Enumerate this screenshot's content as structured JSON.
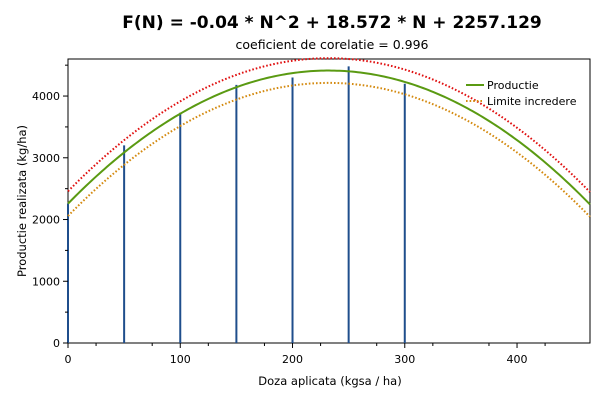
{
  "chart_data": {
    "type": "line",
    "title": "F(N) = -0.04 * N^2  +  18.572 * N  +  2257.129",
    "subtitle": "coeficient de corelatie = 0.996",
    "xlabel": "Doza aplicata (kgsa / ha)",
    "ylabel": "Productie realizata (kg/ha)",
    "xlim": [
      0,
      465
    ],
    "ylim": [
      0,
      4600
    ],
    "x_ticks": [
      0,
      100,
      200,
      300,
      400
    ],
    "y_ticks": [
      0,
      1000,
      2000,
      3000,
      4000
    ],
    "grid": false,
    "legend_position": "top-right",
    "fit": {
      "a": -0.04,
      "b": 18.572,
      "c": 2257.129,
      "x_range": [
        0,
        465
      ]
    },
    "confidence_offset": 200,
    "series": [
      {
        "name": "Productie",
        "kind": "line",
        "style": "solid",
        "color": "#5a9a12"
      },
      {
        "name": "Limite incredere",
        "kind": "band",
        "style": "dotted",
        "upper_color": "#e01010",
        "lower_color": "#d48a10"
      }
    ],
    "observations": {
      "color": "#1f4e8c",
      "x": [
        0,
        50,
        100,
        150,
        200,
        250,
        300
      ],
      "y": [
        2260,
        3200,
        3730,
        4180,
        4300,
        4480,
        4200
      ]
    }
  }
}
